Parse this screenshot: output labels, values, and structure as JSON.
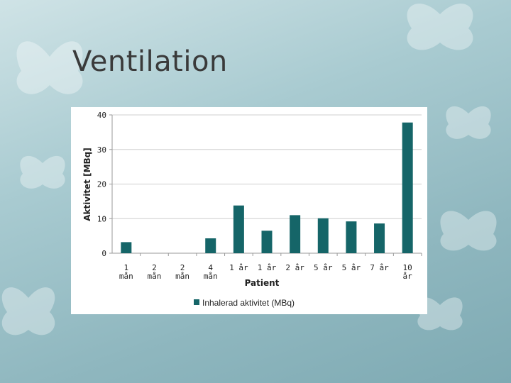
{
  "slide": {
    "title": "Ventilation"
  },
  "colors": {
    "bar": "#156568",
    "grid": "#cfcfcf",
    "axis": "#9a9a9a"
  },
  "chart_data": {
    "type": "bar",
    "ylabel": "Aktivitet [MBq]",
    "xlabel": "Patient",
    "ylim": [
      0,
      40
    ],
    "yticks": [
      0,
      10,
      20,
      30,
      40
    ],
    "grid": true,
    "legend_position": "bottom",
    "categories": [
      "1 mån",
      "2 mån",
      "2 mån",
      "4 mån",
      "1 år",
      "1 år",
      "2 år",
      "5 år",
      "5 år",
      "7 år",
      "10 år"
    ],
    "series": [
      {
        "name": "Inhalerad aktivitet (MBq)",
        "values": [
          3.2,
          0,
          0,
          4.3,
          13.8,
          6.5,
          11.0,
          10.1,
          9.2,
          8.6,
          37.8
        ]
      }
    ]
  }
}
